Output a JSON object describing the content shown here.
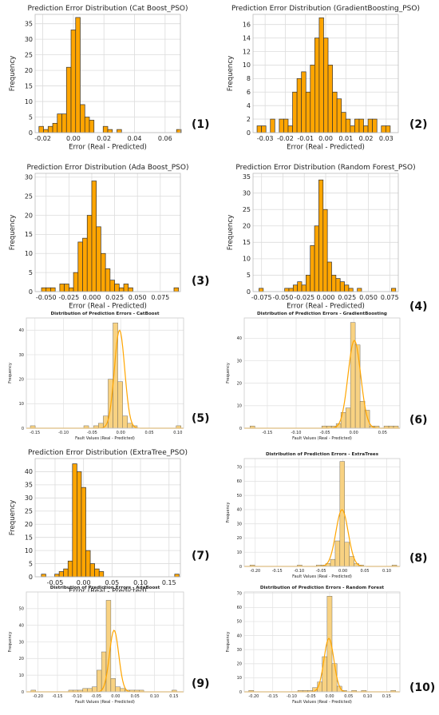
{
  "chart_data": [
    {
      "type": "histogram",
      "title": "Prediction Error Distribution (Cat Boost_PSO)",
      "xlabel": "Error (Real - Predicted)",
      "ylabel": "Frequency",
      "panel_label": "(1)",
      "style": "psoplot",
      "bar_color": "#FFA500",
      "grid": true,
      "xlim": [
        -0.025,
        0.07
      ],
      "ylim": [
        0,
        38
      ],
      "x_ticks": [
        -0.02,
        0.0,
        0.02,
        0.04,
        0.06
      ],
      "x_tick_labels": [
        "-0.02",
        "0.00",
        "0.02",
        "0.04",
        "0.06"
      ],
      "y_ticks": [
        0,
        5,
        10,
        15,
        20,
        25,
        30,
        35
      ],
      "y_tick_labels": [
        "0",
        "5",
        "10",
        "15",
        "20",
        "25",
        "30",
        "35"
      ],
      "bin_start": -0.0225,
      "bin_width": 0.003,
      "counts": [
        2,
        1,
        2,
        3,
        6,
        6,
        21,
        33,
        37,
        9,
        5,
        4,
        0,
        0,
        2,
        1,
        0,
        1,
        0,
        0,
        0,
        0,
        0,
        0,
        0,
        0,
        0,
        0,
        0,
        0,
        1
      ]
    },
    {
      "type": "histogram",
      "title": "Prediction Error Distribution (GradientBoosting_PSO)",
      "xlabel": "Error (Real - Predicted)",
      "ylabel": "Frequency",
      "panel_label": "(2)",
      "style": "psoplot",
      "bar_color": "#FFA500",
      "grid": true,
      "xlim": [
        -0.036,
        0.036
      ],
      "ylim": [
        0,
        17.5
      ],
      "x_ticks": [
        -0.03,
        -0.02,
        -0.01,
        0.0,
        0.01,
        0.02,
        0.03
      ],
      "x_tick_labels": [
        "-0.03",
        "-0.02",
        "-0.01",
        "0.00",
        "0.01",
        "0.02",
        "0.03"
      ],
      "y_ticks": [
        0,
        2,
        4,
        6,
        8,
        10,
        12,
        14,
        16
      ],
      "y_tick_labels": [
        "0",
        "2",
        "4",
        "6",
        "8",
        "10",
        "12",
        "14",
        "16"
      ],
      "bin_start": -0.034,
      "bin_width": 0.0022,
      "counts": [
        1,
        1,
        0,
        2,
        0,
        2,
        2,
        1,
        6,
        8,
        9,
        6,
        10,
        14,
        17,
        14,
        10,
        6,
        5,
        3,
        2,
        1,
        2,
        2,
        1,
        2,
        2,
        0,
        1,
        1
      ]
    },
    {
      "type": "histogram",
      "title": "Prediction Error Distribution (Ada Boost_PSO)",
      "xlabel": "Error (Real - Predicted)",
      "ylabel": "Frequency",
      "panel_label": "(3)",
      "style": "psoplot",
      "bar_color": "#FFA500",
      "grid": true,
      "xlim": [
        -0.062,
        0.097
      ],
      "ylim": [
        0,
        31
      ],
      "x_ticks": [
        -0.05,
        -0.025,
        0.0,
        0.025,
        0.05,
        0.075
      ],
      "x_tick_labels": [
        "-0.050",
        "-0.025",
        "0.000",
        "0.025",
        "0.050",
        "0.075"
      ],
      "y_ticks": [
        0,
        5,
        10,
        15,
        20,
        25,
        30
      ],
      "y_tick_labels": [
        "0",
        "5",
        "10",
        "15",
        "20",
        "25",
        "30"
      ],
      "bin_start": -0.055,
      "bin_width": 0.005,
      "counts": [
        1,
        1,
        1,
        0,
        2,
        2,
        1,
        5,
        13,
        14,
        20,
        29,
        17,
        10,
        6,
        3,
        2,
        1,
        2,
        1,
        0,
        0,
        0,
        0,
        0,
        0,
        0,
        0,
        0,
        1
      ]
    },
    {
      "type": "histogram",
      "title": "Prediction Error Distribution (Random Forest_PSO)",
      "xlabel": "Error (Real - Predicted)",
      "ylabel": "Frequency",
      "panel_label": "(4)",
      "style": "psoplot",
      "bar_color": "#FFA500",
      "grid": true,
      "xlim": [
        -0.085,
        0.085
      ],
      "ylim": [
        0,
        36
      ],
      "x_ticks": [
        -0.075,
        -0.05,
        -0.025,
        0.0,
        0.025,
        0.05,
        0.075
      ],
      "x_tick_labels": [
        "-0.075",
        "-0.050",
        "-0.025",
        "0.000",
        "0.025",
        "0.050",
        "0.075"
      ],
      "y_ticks": [
        0,
        5,
        10,
        15,
        20,
        25,
        30,
        35
      ],
      "y_tick_labels": [
        "0",
        "5",
        "10",
        "15",
        "20",
        "25",
        "30",
        "35"
      ],
      "bin_start": -0.078,
      "bin_width": 0.005,
      "counts": [
        1,
        0,
        0,
        0,
        0,
        0,
        1,
        1,
        2,
        3,
        2,
        5,
        14,
        20,
        34,
        25,
        9,
        5,
        4,
        3,
        2,
        1,
        0,
        1,
        0,
        0,
        0,
        0,
        0,
        0,
        0,
        1
      ]
    },
    {
      "type": "histogram",
      "title": "Distribution of Prediction Errors - CatBoost",
      "xlabel": "Fault Values (Real - Predicted)",
      "ylabel": "Frequency",
      "panel_label": "(5)",
      "style": "snsplot",
      "bar_color": "#F8D282",
      "line_color": "#FFA500",
      "grid": true,
      "xlim": [
        -0.165,
        0.11
      ],
      "ylim": [
        0,
        45
      ],
      "x_ticks": [
        -0.15,
        -0.1,
        -0.05,
        0.0,
        0.05,
        0.1
      ],
      "x_tick_labels": [
        "-0.15",
        "-0.10",
        "-0.05",
        "0.00",
        "0.05",
        "0.10"
      ],
      "y_ticks": [
        0,
        10,
        20,
        30,
        40
      ],
      "y_tick_labels": [
        "0",
        "10",
        "20",
        "30",
        "40"
      ],
      "bin_start": -0.158,
      "bin_width": 0.0085,
      "counts": [
        1,
        0,
        0,
        0,
        0,
        0,
        0,
        0,
        0,
        0,
        0,
        1,
        0,
        1,
        2,
        5,
        20,
        43,
        19,
        5,
        2,
        1,
        0,
        0,
        0,
        0,
        0,
        0,
        0,
        0,
        1
      ],
      "kde": {
        "amp": 40,
        "mu": -0.002,
        "sigma": 0.009
      }
    },
    {
      "type": "histogram",
      "title": "Distribution of Prediction Errors - GradientBoosting",
      "xlabel": "Fault Values (Real - Predicted)",
      "ylabel": "Frequency",
      "panel_label": "(6)",
      "style": "snsplot",
      "bar_color": "#F8D282",
      "line_color": "#FFA500",
      "grid": true,
      "xlim": [
        -0.19,
        0.08
      ],
      "ylim": [
        0,
        49
      ],
      "x_ticks": [
        -0.15,
        -0.1,
        -0.05,
        0.0,
        0.05
      ],
      "x_tick_labels": [
        "-0.15",
        "-0.10",
        "-0.05",
        "0.00",
        "0.05"
      ],
      "y_ticks": [
        0,
        10,
        20,
        30,
        40
      ],
      "y_tick_labels": [
        "0",
        "10",
        "20",
        "30",
        "40"
      ],
      "bin_start": -0.18,
      "bin_width": 0.0083,
      "counts": [
        1,
        0,
        0,
        0,
        0,
        0,
        0,
        0,
        0,
        0,
        0,
        0,
        0,
        0,
        0,
        1,
        1,
        1,
        2,
        7,
        9,
        47,
        37,
        12,
        8,
        1,
        1,
        0,
        1,
        1,
        1
      ],
      "kde": {
        "amp": 39,
        "mu": 0.001,
        "sigma": 0.011
      }
    },
    {
      "type": "histogram",
      "title": "Prediction Error Distribution (ExtraTree_PSO)",
      "xlabel": "Error (Real - Predicted)",
      "ylabel": "Frequency",
      "panel_label": "(7)",
      "style": "psoplot",
      "bar_color": "#FFA500",
      "grid": true,
      "xlim": [
        -0.085,
        0.17
      ],
      "ylim": [
        0,
        45
      ],
      "x_ticks": [
        -0.05,
        0.0,
        0.05,
        0.1,
        0.15
      ],
      "x_tick_labels": [
        "-0.05",
        "0.00",
        "0.05",
        "0.10",
        "0.15"
      ],
      "y_ticks": [
        0,
        5,
        10,
        15,
        20,
        25,
        30,
        35,
        40
      ],
      "y_tick_labels": [
        "0",
        "5",
        "10",
        "15",
        "20",
        "25",
        "30",
        "35",
        "40"
      ],
      "bin_start": -0.074,
      "bin_width": 0.0078,
      "counts": [
        1,
        0,
        0,
        1,
        2,
        3,
        6,
        43,
        40,
        34,
        10,
        5,
        3,
        2,
        0,
        0,
        0,
        0,
        0,
        0,
        0,
        0,
        0,
        0,
        0,
        0,
        0,
        0,
        0,
        0,
        1
      ]
    },
    {
      "type": "histogram",
      "title": "Distribution of Prediction Errors - ExtraTrees",
      "xlabel": "Fault Values (Real - Predicted)",
      "ylabel": "Frequency",
      "panel_label": "(8)",
      "style": "snsplot",
      "bar_color": "#F8D282",
      "line_color": "#FFA500",
      "grid": true,
      "xlim": [
        -0.225,
        0.13
      ],
      "ylim": [
        0,
        76
      ],
      "x_ticks": [
        -0.2,
        -0.15,
        -0.1,
        -0.05,
        0.0,
        0.05,
        0.1
      ],
      "x_tick_labels": [
        "-0.20",
        "-0.15",
        "-0.10",
        "-0.05",
        "0.00",
        "0.05",
        "0.10"
      ],
      "y_ticks": [
        0,
        10,
        20,
        30,
        40,
        50,
        60,
        70
      ],
      "y_tick_labels": [
        "0",
        "10",
        "20",
        "30",
        "40",
        "50",
        "60",
        "70"
      ],
      "bin_start": -0.212,
      "bin_width": 0.0108,
      "counts": [
        1,
        0,
        0,
        0,
        0,
        0,
        0,
        0,
        0,
        0,
        1,
        0,
        0,
        0,
        1,
        1,
        2,
        5,
        18,
        74,
        17,
        7,
        2,
        1,
        0,
        0,
        0,
        0,
        0,
        0,
        1
      ],
      "kde": {
        "amp": 40,
        "mu": -0.002,
        "sigma": 0.014
      }
    },
    {
      "type": "histogram",
      "title": "Distribution of Prediction Errors - AdaBoost",
      "xlabel": "Fault Values (Real - Predicted)",
      "ylabel": "Frequency",
      "panel_label": "(9)",
      "style": "snsplot",
      "bar_color": "#F8D282",
      "line_color": "#FFA500",
      "grid": true,
      "xlim": [
        -0.23,
        0.175
      ],
      "ylim": [
        0,
        60
      ],
      "x_ticks": [
        -0.2,
        -0.15,
        -0.1,
        -0.05,
        0.0,
        0.05,
        0.1,
        0.15
      ],
      "x_tick_labels": [
        "-0.20",
        "-0.15",
        "-0.10",
        "-0.05",
        "0.00",
        "0.05",
        "0.10",
        "0.15"
      ],
      "y_ticks": [
        0,
        10,
        20,
        30,
        40,
        50
      ],
      "y_tick_labels": [
        "0",
        "10",
        "20",
        "30",
        "40",
        "50"
      ],
      "bin_start": -0.218,
      "bin_width": 0.0121,
      "counts": [
        1,
        0,
        0,
        0,
        0,
        0,
        0,
        0,
        1,
        1,
        1,
        2,
        2,
        3,
        13,
        24,
        55,
        8,
        3,
        2,
        1,
        1,
        1,
        1,
        0,
        0,
        0,
        0,
        0,
        0,
        1
      ],
      "kde": {
        "amp": 37,
        "mu": -0.004,
        "sigma": 0.012
      }
    },
    {
      "type": "histogram",
      "title": "Distribution of Prediction Errors - Random Forest",
      "xlabel": "Fault Values (Real - Predicted)",
      "ylabel": "Frequency",
      "panel_label": "(10)",
      "style": "snsplot",
      "bar_color": "#F8D282",
      "line_color": "#FFA500",
      "grid": true,
      "xlim": [
        -0.225,
        0.185
      ],
      "ylim": [
        0,
        71
      ],
      "x_ticks": [
        -0.2,
        -0.15,
        -0.1,
        -0.05,
        0.0,
        0.05,
        0.1,
        0.15
      ],
      "x_tick_labels": [
        "-0.20",
        "-0.15",
        "-0.10",
        "-0.05",
        "0.00",
        "0.05",
        "0.10",
        "0.15"
      ],
      "y_ticks": [
        0,
        10,
        20,
        30,
        40,
        50,
        60,
        70
      ],
      "y_tick_labels": [
        "0",
        "10",
        "20",
        "30",
        "40",
        "50",
        "60",
        "70"
      ],
      "bin_start": -0.213,
      "bin_width": 0.0129,
      "counts": [
        1,
        0,
        0,
        0,
        0,
        0,
        0,
        0,
        0,
        0,
        1,
        1,
        1,
        3,
        7,
        25,
        68,
        20,
        4,
        1,
        0,
        1,
        0,
        1,
        0,
        0,
        0,
        0,
        0,
        1
      ],
      "kde": {
        "amp": 38,
        "mu": -0.002,
        "sigma": 0.013
      }
    }
  ]
}
